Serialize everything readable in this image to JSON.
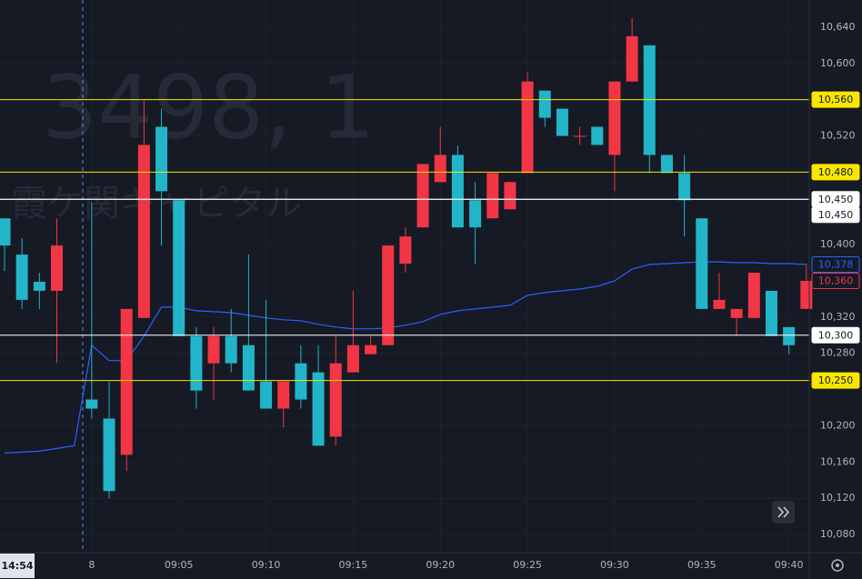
{
  "chart_data": {
    "type": "candlestick",
    "watermark_symbol": "3498, 1",
    "watermark_name": "霞ケ関キャピタル",
    "categories": [
      "14:54",
      null,
      null,
      null,
      null,
      "8",
      null,
      null,
      null,
      null,
      "09:05",
      null,
      null,
      null,
      null,
      "09:10",
      null,
      null,
      null,
      null,
      "09:15",
      null,
      null,
      null,
      null,
      "09:20",
      null,
      null,
      null,
      null,
      "09:25",
      null,
      null,
      null,
      null,
      "09:30",
      null,
      null,
      null,
      null,
      "09:35",
      null,
      null,
      null,
      null,
      "09:40",
      null
    ],
    "open": [
      10429,
      10389,
      10359,
      10349,
      null,
      10229,
      10208,
      10168,
      10319,
      10530,
      10449,
      10299,
      10269,
      10299,
      10289,
      10249,
      10219,
      10269,
      10259,
      10188,
      10259,
      10279,
      10289,
      10379,
      10419,
      10469,
      10499,
      10449,
      10429,
      10439,
      10479,
      10570,
      10550,
      10520,
      10530,
      10499,
      10580,
      10620,
      10499,
      10479,
      10429,
      10329,
      10319,
      10319,
      10349,
      10309,
      10329
    ],
    "high": [
      10429,
      10407,
      10369,
      10429,
      null,
      10447,
      10249,
      10329,
      10560,
      10550,
      10449,
      10309,
      10309,
      10329,
      10389,
      10339,
      10249,
      10289,
      10289,
      10299,
      10349,
      10299,
      10399,
      10419,
      10489,
      10530,
      10509,
      10469,
      10479,
      10469,
      10590,
      10570,
      10550,
      10530,
      10530,
      10580,
      10650,
      10620,
      10499,
      10499,
      10429,
      10369,
      10329,
      10369,
      10349,
      10309,
      10379
    ],
    "low": [
      10371,
      10329,
      10329,
      10269,
      null,
      10208,
      10120,
      10150,
      10319,
      10399,
      10299,
      10219,
      10229,
      10259,
      10239,
      10219,
      10198,
      10219,
      10178,
      10178,
      10259,
      10279,
      10289,
      10369,
      10419,
      10469,
      10419,
      10379,
      10429,
      10439,
      10479,
      10530,
      10520,
      10510,
      10510,
      10459,
      10580,
      10479,
      10479,
      10409,
      10329,
      10329,
      10299,
      10319,
      10299,
      10279,
      10329
    ],
    "close": [
      10399,
      10339,
      10349,
      10399,
      null,
      10219,
      10128,
      10329,
      10510,
      10459,
      10299,
      10239,
      10299,
      10269,
      10239,
      10219,
      10249,
      10229,
      10178,
      10269,
      10289,
      10289,
      10399,
      10409,
      10489,
      10499,
      10419,
      10419,
      10479,
      10469,
      10580,
      10540,
      10520,
      10520,
      10510,
      10580,
      10630,
      10499,
      10479,
      10449,
      10329,
      10339,
      10329,
      10369,
      10299,
      10289,
      10360
    ],
    "up_color": "#f23645",
    "down_color": "#22b5c9",
    "line": {
      "color": "#2962ff",
      "values": [
        10170,
        10171,
        10172,
        10175,
        10178,
        10289,
        10272,
        10272,
        10299,
        10331,
        10331,
        10327,
        10326,
        10325,
        10322,
        10319,
        10317,
        10316,
        10312,
        10309,
        10307,
        10307,
        10308,
        10311,
        10315,
        10323,
        10327,
        10329,
        10331,
        10333,
        10344,
        10347,
        10349,
        10351,
        10354,
        10360,
        10373,
        10378,
        10379,
        10380,
        10381,
        10381,
        10380,
        10380,
        10379,
        10379,
        10378
      ]
    },
    "ylim": [
      10060,
      10670
    ],
    "yticks": [
      {
        "value": 10080,
        "label": "10,080"
      },
      {
        "value": 10120,
        "label": "10,120"
      },
      {
        "value": 10160,
        "label": "10,160"
      },
      {
        "value": 10200,
        "label": "10,200"
      },
      {
        "value": 10280,
        "label": "10,280"
      },
      {
        "value": 10320,
        "label": "10,320"
      },
      {
        "value": 10400,
        "label": "10,400"
      },
      {
        "value": 10520,
        "label": "10,520"
      },
      {
        "value": 10600,
        "label": "10,600"
      },
      {
        "value": 10640,
        "label": "10,640"
      }
    ],
    "grid": true,
    "price_lines": [
      {
        "value": 10560,
        "label": "10,560",
        "color": "#f7e600",
        "kind": "line"
      },
      {
        "value": 10480,
        "label": "10,480",
        "color": "#f7e600",
        "kind": "line"
      },
      {
        "value": 10450,
        "label": "10,450",
        "color": "#ffffff",
        "kind": "line"
      },
      {
        "value": 10450,
        "label": "10,450",
        "color": "#ffffff",
        "kind": "line"
      },
      {
        "value": 10378,
        "label": "10,378",
        "color": "#2962ff",
        "kind": "badge"
      },
      {
        "value": 10360,
        "label": "10,360",
        "color": "#f23645",
        "kind": "badge"
      },
      {
        "value": 10300,
        "label": "10,300",
        "color": "#ffffff",
        "kind": "line"
      },
      {
        "value": 10250,
        "label": "10,250",
        "color": "#f7e600",
        "kind": "line"
      }
    ]
  }
}
